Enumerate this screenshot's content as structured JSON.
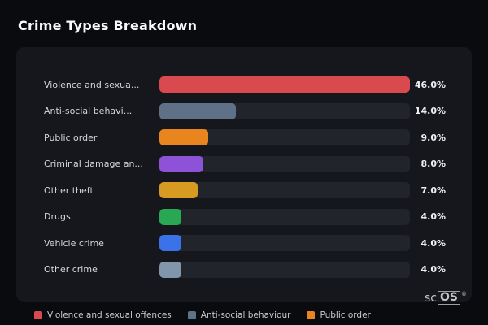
{
  "page": {
    "title": "Crime Types Breakdown"
  },
  "chart_data": {
    "type": "bar",
    "orientation": "horizontal",
    "title": "Crime Types Breakdown",
    "categories": [
      "Violence and sexua...",
      "Anti-social behavi...",
      "Public order",
      "Criminal damage an...",
      "Other theft",
      "Drugs",
      "Vehicle crime",
      "Other crime"
    ],
    "values": [
      46.0,
      14.0,
      9.0,
      8.0,
      7.0,
      4.0,
      4.0,
      4.0
    ],
    "value_labels": [
      "46.0%",
      "14.0%",
      "9.0%",
      "8.0%",
      "7.0%",
      "4.0%",
      "4.0%",
      "4.0%"
    ],
    "bar_colors": [
      "#d84a4e",
      "#5e7186",
      "#e8851f",
      "#8e52d9",
      "#d79a23",
      "#28a852",
      "#3b72e8",
      "#8195ab"
    ],
    "xlim": [
      0,
      46
    ],
    "grid": false,
    "legend_position": "bottom"
  },
  "legend": {
    "items": [
      {
        "label": "Violence and sexual offences",
        "color": "#d84a4e"
      },
      {
        "label": "Anti-social behaviour",
        "color": "#5e7186"
      },
      {
        "label": "Public order",
        "color": "#e8851f"
      }
    ]
  },
  "watermark": {
    "prefix": "sc",
    "boxed": "OS",
    "reg": "®"
  },
  "colors": {
    "background": "#0a0b0e",
    "card": "#16171c",
    "track": "#22242b",
    "label_text": "#d3d6da",
    "value_text": "#eceef0"
  }
}
